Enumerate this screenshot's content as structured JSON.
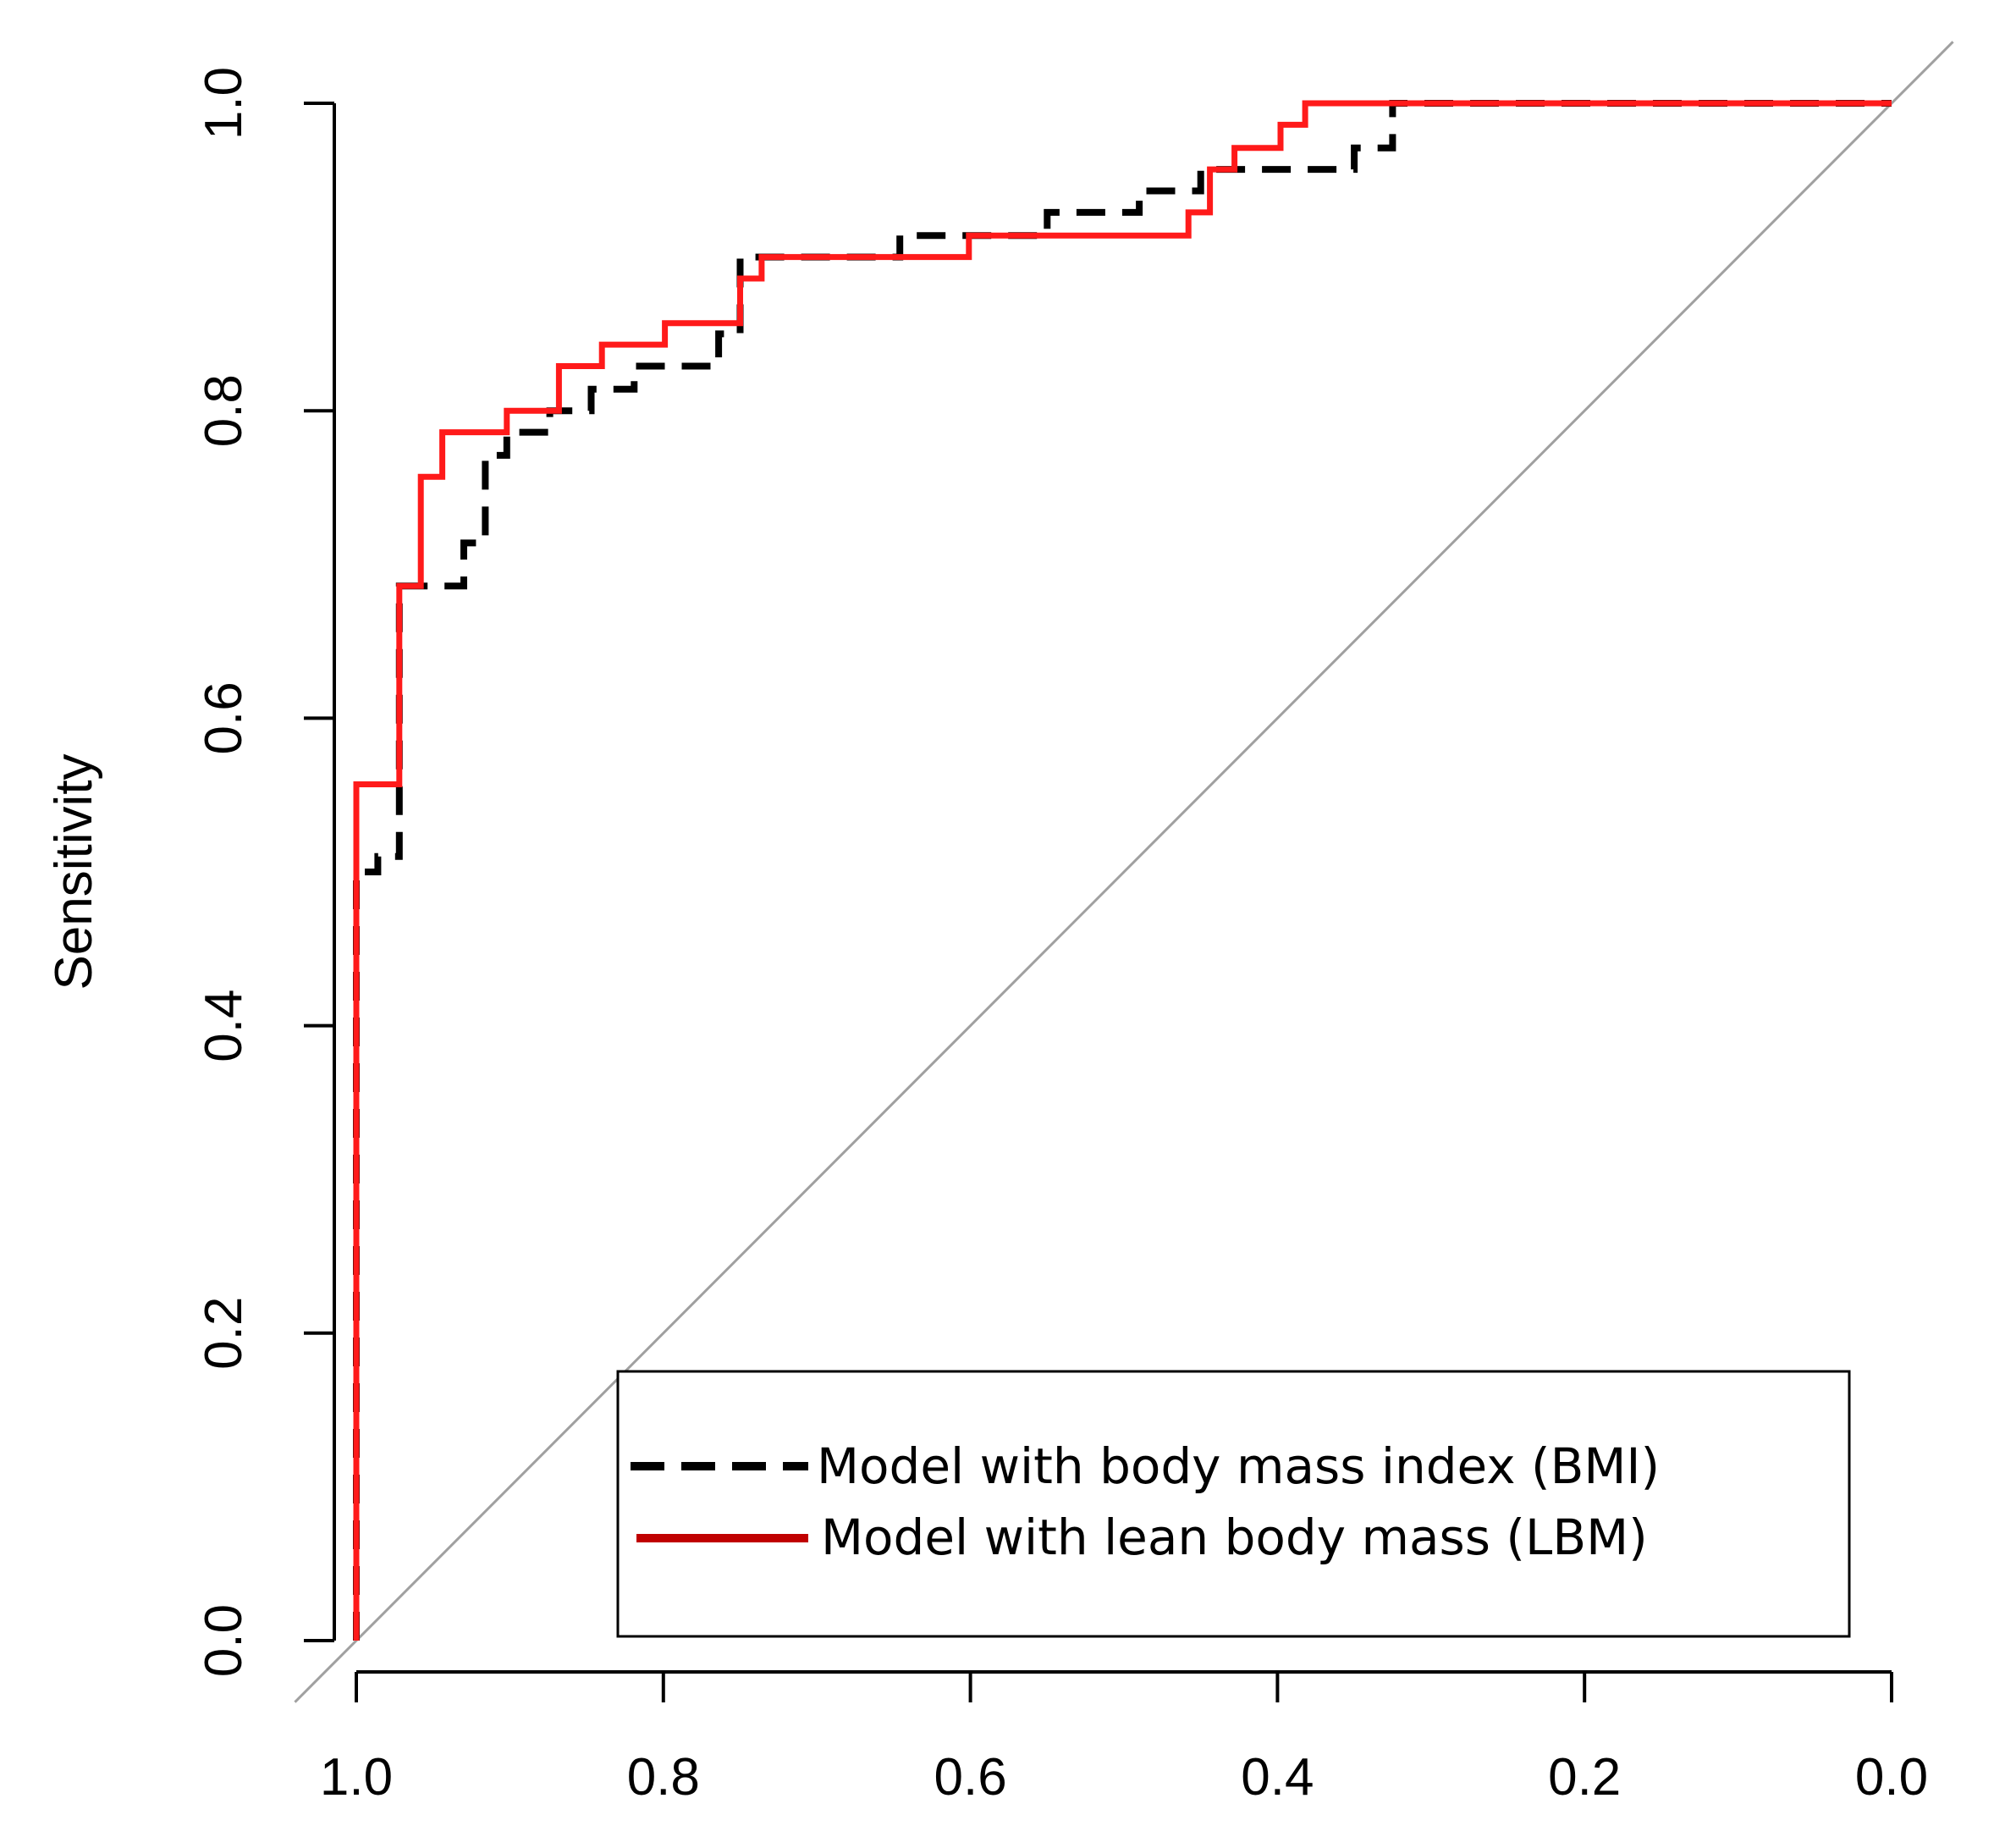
{
  "chart_data": {
    "type": "line",
    "title": "",
    "xlabel": "",
    "ylabel": "Sensitivity",
    "xlim": [
      1.0,
      0.0
    ],
    "ylim": [
      0.0,
      1.0
    ],
    "grid": false,
    "legend_position": "bottom-right",
    "x_ticks": [
      "1.0",
      "0.8",
      "0.6",
      "0.4",
      "0.2",
      "0.0"
    ],
    "y_ticks": [
      "0.0",
      "0.2",
      "0.4",
      "0.6",
      "0.8",
      "1.0"
    ],
    "reference_line": {
      "from": [
        1.0,
        0.0
      ],
      "to": [
        0.0,
        1.0
      ],
      "color": "#a0a0a0"
    },
    "series": [
      {
        "name": "Model with body mass index (BMI)",
        "style": "dashed",
        "color": "#000000",
        "specificity": [
          1.0,
          1.0,
          0.986,
          0.986,
          0.986,
          0.972,
          0.972,
          0.958,
          0.958,
          0.93,
          0.93,
          0.916,
          0.916,
          0.902,
          0.902,
          0.874,
          0.874,
          0.847,
          0.847,
          0.819,
          0.819,
          0.764,
          0.764,
          0.75,
          0.75,
          0.736,
          0.736,
          0.646,
          0.646,
          0.55,
          0.55,
          0.49,
          0.49,
          0.45,
          0.45,
          0.35,
          0.35,
          0.325,
          0.325,
          0.0
        ],
        "sensitivity": [
          0.0,
          0.5,
          0.5,
          0.51,
          0.51,
          0.51,
          0.686,
          0.686,
          0.686,
          0.686,
          0.714,
          0.714,
          0.771,
          0.771,
          0.786,
          0.786,
          0.8,
          0.8,
          0.814,
          0.814,
          0.829,
          0.829,
          0.85,
          0.85,
          0.9,
          0.9,
          0.9,
          0.9,
          0.914,
          0.914,
          0.929,
          0.929,
          0.943,
          0.943,
          0.957,
          0.957,
          0.971,
          0.971,
          1.0,
          1.0
        ]
      },
      {
        "name": "Model with lean body mass (LBM)",
        "style": "solid",
        "color": "#ff1a1a",
        "specificity": [
          1.0,
          1.0,
          0.972,
          0.972,
          0.958,
          0.958,
          0.944,
          0.944,
          0.902,
          0.902,
          0.868,
          0.868,
          0.84,
          0.84,
          0.799,
          0.799,
          0.75,
          0.75,
          0.736,
          0.736,
          0.601,
          0.601,
          0.458,
          0.458,
          0.444,
          0.444,
          0.428,
          0.428,
          0.398,
          0.398,
          0.382,
          0.382,
          0.0
        ],
        "sensitivity": [
          0.0,
          0.557,
          0.557,
          0.686,
          0.686,
          0.757,
          0.757,
          0.786,
          0.786,
          0.8,
          0.8,
          0.829,
          0.829,
          0.843,
          0.843,
          0.857,
          0.857,
          0.886,
          0.886,
          0.9,
          0.9,
          0.914,
          0.914,
          0.929,
          0.929,
          0.957,
          0.957,
          0.971,
          0.971,
          0.986,
          0.986,
          1.0,
          1.0
        ]
      }
    ]
  }
}
